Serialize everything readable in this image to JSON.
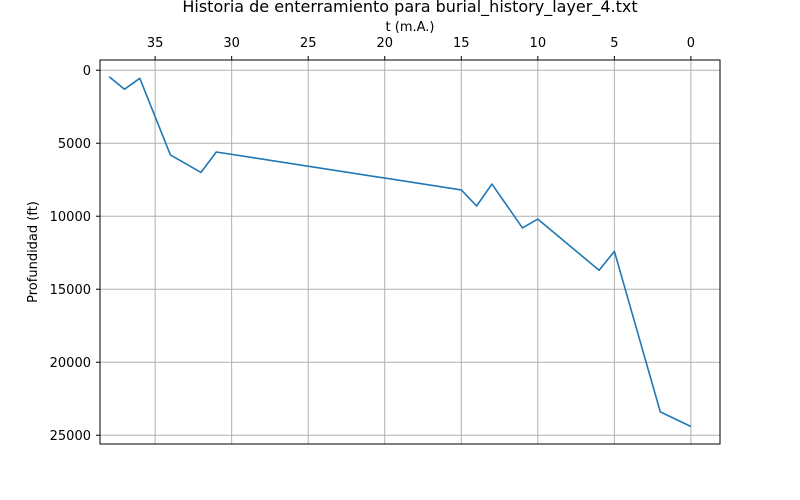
{
  "chart_data": {
    "type": "line",
    "title": "Historia de enterramiento para burial_history_layer_4.txt",
    "xlabel": "t (m.A.)",
    "ylabel": "Profundidad (ft)",
    "xlim": [
      38.6,
      -1.9
    ],
    "ylim": [
      25600,
      -700
    ],
    "x_axis_position": "top",
    "x_inverted": true,
    "y_inverted": true,
    "grid": true,
    "xticks": [
      35,
      30,
      25,
      20,
      15,
      10,
      5,
      0
    ],
    "yticks": [
      0,
      5000,
      10000,
      15000,
      20000,
      25000
    ],
    "series": [
      {
        "color": "#1f77b4",
        "x": [
          38,
          37,
          36,
          34,
          32,
          31,
          15,
          14,
          13,
          11,
          10,
          6,
          5,
          2,
          0
        ],
        "y": [
          450,
          1300,
          550,
          5800,
          7000,
          5600,
          8200,
          9300,
          7800,
          10800,
          10200,
          13700,
          12400,
          23400,
          24400
        ]
      }
    ]
  }
}
